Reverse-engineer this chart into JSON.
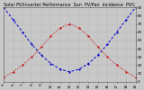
{
  "title": "Solar PV/Inverter Performance  Sun  PV/Pan  incidence  PVG",
  "bg_color": "#c8c8c8",
  "plot_bg_color": "#c8c8c8",
  "grid_color": "#888888",
  "x_values": [
    5,
    6,
    7,
    8,
    9,
    10,
    11,
    12,
    13,
    14,
    15,
    16,
    17,
    18,
    19
  ],
  "sun_altitude": [
    90,
    75,
    60,
    45,
    32,
    22,
    15,
    12,
    15,
    22,
    32,
    45,
    60,
    75,
    90
  ],
  "sun_incidence": [
    5,
    12,
    20,
    30,
    42,
    55,
    65,
    70,
    65,
    55,
    42,
    30,
    20,
    12,
    5
  ],
  "altitude_color": "#0000cc",
  "incidence_color": "#cc0000",
  "ylim": [
    0,
    90
  ],
  "xlim": [
    5,
    19
  ],
  "yticks": [
    0,
    10,
    20,
    30,
    40,
    50,
    60,
    70,
    80,
    90
  ],
  "xtick_labels": [
    "5",
    "6",
    "7",
    "8",
    "9",
    "10",
    "11",
    "12",
    "13",
    "14",
    "15",
    "16",
    "17",
    "18",
    "19"
  ],
  "title_color": "#000000",
  "tick_color": "#000000",
  "title_fontsize": 3.5,
  "tick_fontsize": 3.0
}
